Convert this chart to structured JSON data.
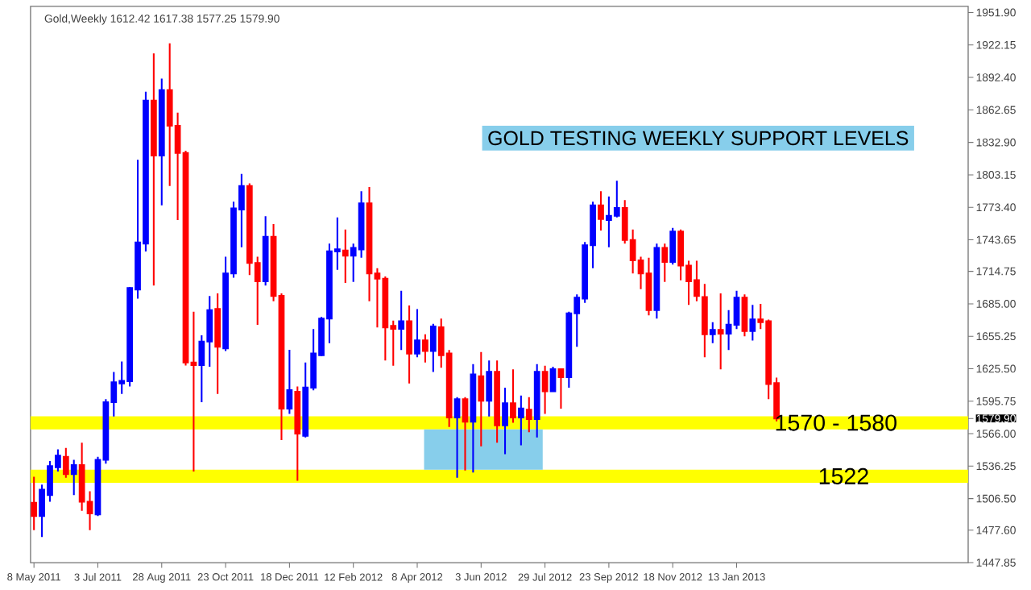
{
  "chart_data": {
    "type": "candlestick",
    "title": "Gold,Weekly 1612.42 1617.38 1577.25 1579.90",
    "subtitle": "GOLD TESTING WEEKLY SUPPORT LEVELS",
    "x": [
      "2011-05-08",
      "2011-05-15",
      "2011-05-22",
      "2011-05-29",
      "2011-06-05",
      "2011-06-12",
      "2011-06-19",
      "2011-06-26",
      "2011-07-03",
      "2011-07-10",
      "2011-07-17",
      "2011-07-24",
      "2011-07-31",
      "2011-08-07",
      "2011-08-14",
      "2011-08-21",
      "2011-08-28",
      "2011-09-04",
      "2011-09-11",
      "2011-09-18",
      "2011-09-25",
      "2011-10-02",
      "2011-10-09",
      "2011-10-16",
      "2011-10-23",
      "2011-10-30",
      "2011-11-06",
      "2011-11-13",
      "2011-11-20",
      "2011-11-27",
      "2011-12-04",
      "2011-12-11",
      "2011-12-18",
      "2011-12-25",
      "2012-01-01",
      "2012-01-08",
      "2012-01-15",
      "2012-01-22",
      "2012-01-29",
      "2012-02-05",
      "2012-02-12",
      "2012-02-19",
      "2012-02-26",
      "2012-03-04",
      "2012-03-11",
      "2012-03-18",
      "2012-03-25",
      "2012-04-01",
      "2012-04-08",
      "2012-04-15",
      "2012-04-22",
      "2012-04-29",
      "2012-05-06",
      "2012-05-13",
      "2012-05-20",
      "2012-05-27",
      "2012-06-03",
      "2012-06-10",
      "2012-06-17",
      "2012-06-24",
      "2012-07-01",
      "2012-07-08",
      "2012-07-15",
      "2012-07-22",
      "2012-07-29",
      "2012-08-05",
      "2012-08-12",
      "2012-08-19",
      "2012-08-26",
      "2012-09-02",
      "2012-09-09",
      "2012-09-16",
      "2012-09-23",
      "2012-09-30",
      "2012-10-07",
      "2012-10-14",
      "2012-10-21",
      "2012-10-28",
      "2012-11-04",
      "2012-11-11",
      "2012-11-18",
      "2012-11-25",
      "2012-12-02",
      "2012-12-09",
      "2012-12-16",
      "2012-12-23",
      "2012-12-30",
      "2013-01-06",
      "2013-01-13",
      "2013-01-20",
      "2013-01-27",
      "2013-02-03",
      "2013-02-10",
      "2013-02-17"
    ],
    "ohlc": [
      [
        1502.6,
        1526.6,
        1477.6,
        1490.6
      ],
      [
        1490.6,
        1519.4,
        1471.4,
        1514.6
      ],
      [
        1509.8,
        1541.0,
        1503.6,
        1536.2
      ],
      [
        1535.2,
        1551.6,
        1531.4,
        1545.8
      ],
      [
        1544.8,
        1553.0,
        1525.6,
        1529.0
      ],
      [
        1529.0,
        1542.0,
        1509.8,
        1537.2
      ],
      [
        1537.2,
        1557.8,
        1495.4,
        1503.6
      ],
      [
        1503.6,
        1513.2,
        1477.6,
        1493.0
      ],
      [
        1492.0,
        1544.8,
        1490.6,
        1542.0
      ],
      [
        1542.0,
        1597.6,
        1538.6,
        1594.8
      ],
      [
        1594.8,
        1622.6,
        1581.8,
        1613.0
      ],
      [
        1612.0,
        1632.2,
        1602.4,
        1614.4
      ],
      [
        1614.0,
        1700.4,
        1609.2,
        1699.4
      ],
      [
        1698.0,
        1817.0,
        1689.8,
        1741.2
      ],
      [
        1740.2,
        1879.4,
        1733.0,
        1871.2
      ],
      [
        1871.2,
        1914.4,
        1701.8,
        1820.8
      ],
      [
        1820.8,
        1891.4,
        1775.2,
        1880.8
      ],
      [
        1880.8,
        1923.6,
        1793.0,
        1848.2
      ],
      [
        1848.2,
        1860.2,
        1761.8,
        1823.2
      ],
      [
        1823.2,
        1825.2,
        1628.4,
        1631.2
      ],
      [
        1631.2,
        1677.8,
        1531.4,
        1628.8
      ],
      [
        1628.8,
        1656.2,
        1594.8,
        1650.4
      ],
      [
        1650.4,
        1692.2,
        1627.4,
        1679.2
      ],
      [
        1680.2,
        1694.6,
        1602.4,
        1645.6
      ],
      [
        1644.2,
        1728.2,
        1641.8,
        1712.8
      ],
      [
        1712.8,
        1778.6,
        1709.0,
        1772.4
      ],
      [
        1771.4,
        1804.0,
        1736.8,
        1793.0
      ],
      [
        1793.0,
        1795.4,
        1711.4,
        1722.4
      ],
      [
        1722.4,
        1728.2,
        1665.8,
        1705.6
      ],
      [
        1705.6,
        1765.2,
        1701.8,
        1746.4
      ],
      [
        1746.4,
        1758.0,
        1687.4,
        1692.2
      ],
      [
        1692.2,
        1694.6,
        1560.2,
        1589.0
      ],
      [
        1589.0,
        1642.8,
        1584.2,
        1605.8
      ],
      [
        1604.4,
        1609.2,
        1522.8,
        1566.0
      ],
      [
        1564.0,
        1631.2,
        1562.6,
        1608.2
      ],
      [
        1608.2,
        1661.9,
        1605.8,
        1639.4
      ],
      [
        1637.9,
        1673.0,
        1637.0,
        1671.5
      ],
      [
        1671.5,
        1740.2,
        1649.0,
        1733.0
      ],
      [
        1733.0,
        1764.2,
        1716.2,
        1734.9
      ],
      [
        1733.9,
        1753.1,
        1704.2,
        1729.1
      ],
      [
        1729.1,
        1740.2,
        1705.1,
        1736.3
      ],
      [
        1734.9,
        1788.2,
        1727.2,
        1777.1
      ],
      [
        1777.1,
        1792.0,
        1687.4,
        1712.8
      ],
      [
        1712.8,
        1717.6,
        1663.4,
        1708.0
      ],
      [
        1708.0,
        1710.0,
        1633.1,
        1663.4
      ],
      [
        1664.8,
        1669.6,
        1628.3,
        1662.0
      ],
      [
        1662.0,
        1697.0,
        1642.7,
        1669.1
      ],
      [
        1669.1,
        1683.5,
        1612.0,
        1639.4
      ],
      [
        1639.4,
        1680.2,
        1636.0,
        1651.4
      ],
      [
        1651.4,
        1657.1,
        1631.2,
        1641.8
      ],
      [
        1641.8,
        1666.7,
        1622.6,
        1664.3
      ],
      [
        1663.4,
        1671.5,
        1626.4,
        1637.9
      ],
      [
        1639.4,
        1642.7,
        1572.2,
        1580.8
      ],
      [
        1580.8,
        1599.5,
        1525.6,
        1597.6
      ],
      [
        1597.6,
        1599.5,
        1532.3,
        1577.0
      ],
      [
        1577.0,
        1629.8,
        1530.4,
        1620.2
      ],
      [
        1618.7,
        1640.8,
        1554.4,
        1596.2
      ],
      [
        1596.2,
        1633.1,
        1581.8,
        1622.6
      ],
      [
        1622.6,
        1633.1,
        1557.8,
        1573.6
      ],
      [
        1573.6,
        1608.2,
        1547.2,
        1593.8
      ],
      [
        1593.8,
        1625.0,
        1576.0,
        1580.8
      ],
      [
        1580.8,
        1601.0,
        1555.4,
        1589.0
      ],
      [
        1588.0,
        1599.5,
        1567.4,
        1579.4
      ],
      [
        1579.4,
        1629.8,
        1562.6,
        1622.6
      ],
      [
        1622.6,
        1628.3,
        1584.2,
        1604.8
      ],
      [
        1604.8,
        1627.4,
        1604.3,
        1625.0
      ],
      [
        1625.0,
        1625.9,
        1589.0,
        1617.8
      ],
      [
        1617.8,
        1677.8,
        1608.2,
        1676.3
      ],
      [
        1676.3,
        1693.6,
        1645.6,
        1690.7
      ],
      [
        1689.8,
        1741.6,
        1685.9,
        1738.7
      ],
      [
        1738.7,
        1778.6,
        1717.6,
        1775.2
      ],
      [
        1775.2,
        1788.2,
        1752.2,
        1762.7
      ],
      [
        1761.8,
        1783.4,
        1736.8,
        1765.6
      ],
      [
        1765.6,
        1797.8,
        1764.2,
        1772.8
      ],
      [
        1772.8,
        1780.0,
        1740.2,
        1743.5
      ],
      [
        1743.5,
        1753.1,
        1712.8,
        1724.8
      ],
      [
        1724.8,
        1728.2,
        1698.4,
        1712.8
      ],
      [
        1712.8,
        1727.2,
        1674.4,
        1679.2
      ],
      [
        1679.2,
        1740.2,
        1671.5,
        1736.3
      ],
      [
        1736.3,
        1740.2,
        1705.1,
        1723.4
      ],
      [
        1723.4,
        1754.6,
        1721.0,
        1751.2
      ],
      [
        1751.2,
        1753.1,
        1706.6,
        1720.0
      ],
      [
        1720.0,
        1724.4,
        1684.0,
        1705.6
      ],
      [
        1706.6,
        1724.4,
        1687.4,
        1692.2
      ],
      [
        1691.2,
        1703.2,
        1636.0,
        1657.1
      ],
      [
        1657.1,
        1668.2,
        1649.0,
        1661.0
      ],
      [
        1661.0,
        1694.6,
        1625.0,
        1657.6
      ],
      [
        1657.6,
        1679.2,
        1642.7,
        1665.8
      ],
      [
        1665.8,
        1697.0,
        1661.9,
        1690.7
      ],
      [
        1690.7,
        1693.6,
        1655.2,
        1660.0
      ],
      [
        1660.0,
        1684.0,
        1651.4,
        1670.6
      ],
      [
        1670.6,
        1685.0,
        1661.9,
        1668.2
      ],
      [
        1669.1,
        1670.6,
        1597.6,
        1611.5
      ],
      [
        1612.42,
        1617.38,
        1577.25,
        1579.9
      ]
    ],
    "colors": [
      "#ff0000",
      "#0000ff",
      "#0000ff",
      "#0000ff",
      "#ff0000",
      "#0000ff",
      "#ff0000",
      "#ff0000",
      "#0000ff",
      "#0000ff",
      "#0000ff",
      "#0000ff",
      "#0000ff",
      "#0000ff",
      "#0000ff",
      "#ff0000",
      "#0000ff",
      "#ff0000",
      "#ff0000",
      "#ff0000",
      "#ff0000",
      "#0000ff",
      "#0000ff",
      "#ff0000",
      "#0000ff",
      "#0000ff",
      "#0000ff",
      "#ff0000",
      "#ff0000",
      "#0000ff",
      "#ff0000",
      "#ff0000",
      "#0000ff",
      "#ff0000",
      "#0000ff",
      "#0000ff",
      "#0000ff",
      "#0000ff",
      "#0000ff",
      "#ff0000",
      "#0000ff",
      "#0000ff",
      "#ff0000",
      "#ff0000",
      "#ff0000",
      "#ff0000",
      "#0000ff",
      "#ff0000",
      "#0000ff",
      "#ff0000",
      "#0000ff",
      "#ff0000",
      "#ff0000",
      "#0000ff",
      "#ff0000",
      "#0000ff",
      "#ff0000",
      "#0000ff",
      "#ff0000",
      "#0000ff",
      "#ff0000",
      "#0000ff",
      "#ff0000",
      "#0000ff",
      "#ff0000",
      "#0000ff",
      "#ff0000",
      "#0000ff",
      "#0000ff",
      "#0000ff",
      "#0000ff",
      "#ff0000",
      "#0000ff",
      "#0000ff",
      "#ff0000",
      "#ff0000",
      "#ff0000",
      "#ff0000",
      "#0000ff",
      "#ff0000",
      "#0000ff",
      "#ff0000",
      "#ff0000",
      "#ff0000",
      "#ff0000",
      "#0000ff",
      "#ff0000",
      "#0000ff",
      "#0000ff",
      "#ff0000",
      "#0000ff",
      "#ff0000",
      "#ff0000",
      "#ff0000"
    ],
    "xlim": [
      "2011-05-05",
      "2013-08-04"
    ],
    "xticks": [
      {
        "value": "2011-05-08",
        "label": "8 May 2011"
      },
      {
        "value": "2011-07-03",
        "label": "3 Jul 2011"
      },
      {
        "value": "2011-08-28",
        "label": "28 Aug 2011"
      },
      {
        "value": "2011-10-23",
        "label": "23 Oct 2011"
      },
      {
        "value": "2011-12-18",
        "label": "18 Dec 2011"
      },
      {
        "value": "2012-02-12",
        "label": "12 Feb 2012"
      },
      {
        "value": "2012-04-08",
        "label": "8 Apr 2012"
      },
      {
        "value": "2012-06-03",
        "label": "3 Jun 2012"
      },
      {
        "value": "2012-07-29",
        "label": "29 Jul 2012"
      },
      {
        "value": "2012-09-23",
        "label": "23 Sep 2012"
      },
      {
        "value": "2012-11-18",
        "label": "18 Nov 2012"
      },
      {
        "value": "2013-01-13",
        "label": "13 Jan 2013"
      }
    ],
    "ylim": [
      1447.85,
      1957.6
    ],
    "yticks": [
      1447.85,
      {
        "value": 1477.6,
        "label": "1477.60"
      },
      {
        "value": 1506.5,
        "label": "1506.50"
      },
      1536.25,
      {
        "value": 1566,
        "label": "1566.00"
      },
      {
        "value": 1579.9,
        "label": "1579.90"
      },
      1595.75,
      {
        "value": 1625.5,
        "label": "1625.50"
      },
      1655.25,
      {
        "value": 1685,
        "label": "1685.00"
      },
      1714.75,
      1743.65,
      {
        "value": 1773.4,
        "label": "1773.40"
      },
      1803.15,
      {
        "value": 1832.9,
        "label": "1832.90"
      },
      1862.65,
      {
        "value": 1892.4,
        "label": "1892.40"
      },
      1922.15,
      {
        "value": 1951.9,
        "label": "1951.90"
      }
    ],
    "bands": [
      {
        "axis": "y",
        "from": 1570,
        "to": 1582,
        "label": "1570 - 1580",
        "color": "#ffff00"
      },
      {
        "axis": "y",
        "from": 1521,
        "to": 1533,
        "label": "1522",
        "color": "#ffff00"
      },
      {
        "axis": "x",
        "from": "2012-04-14",
        "to": "2012-07-27",
        "color": "#87ceeb"
      }
    ]
  }
}
